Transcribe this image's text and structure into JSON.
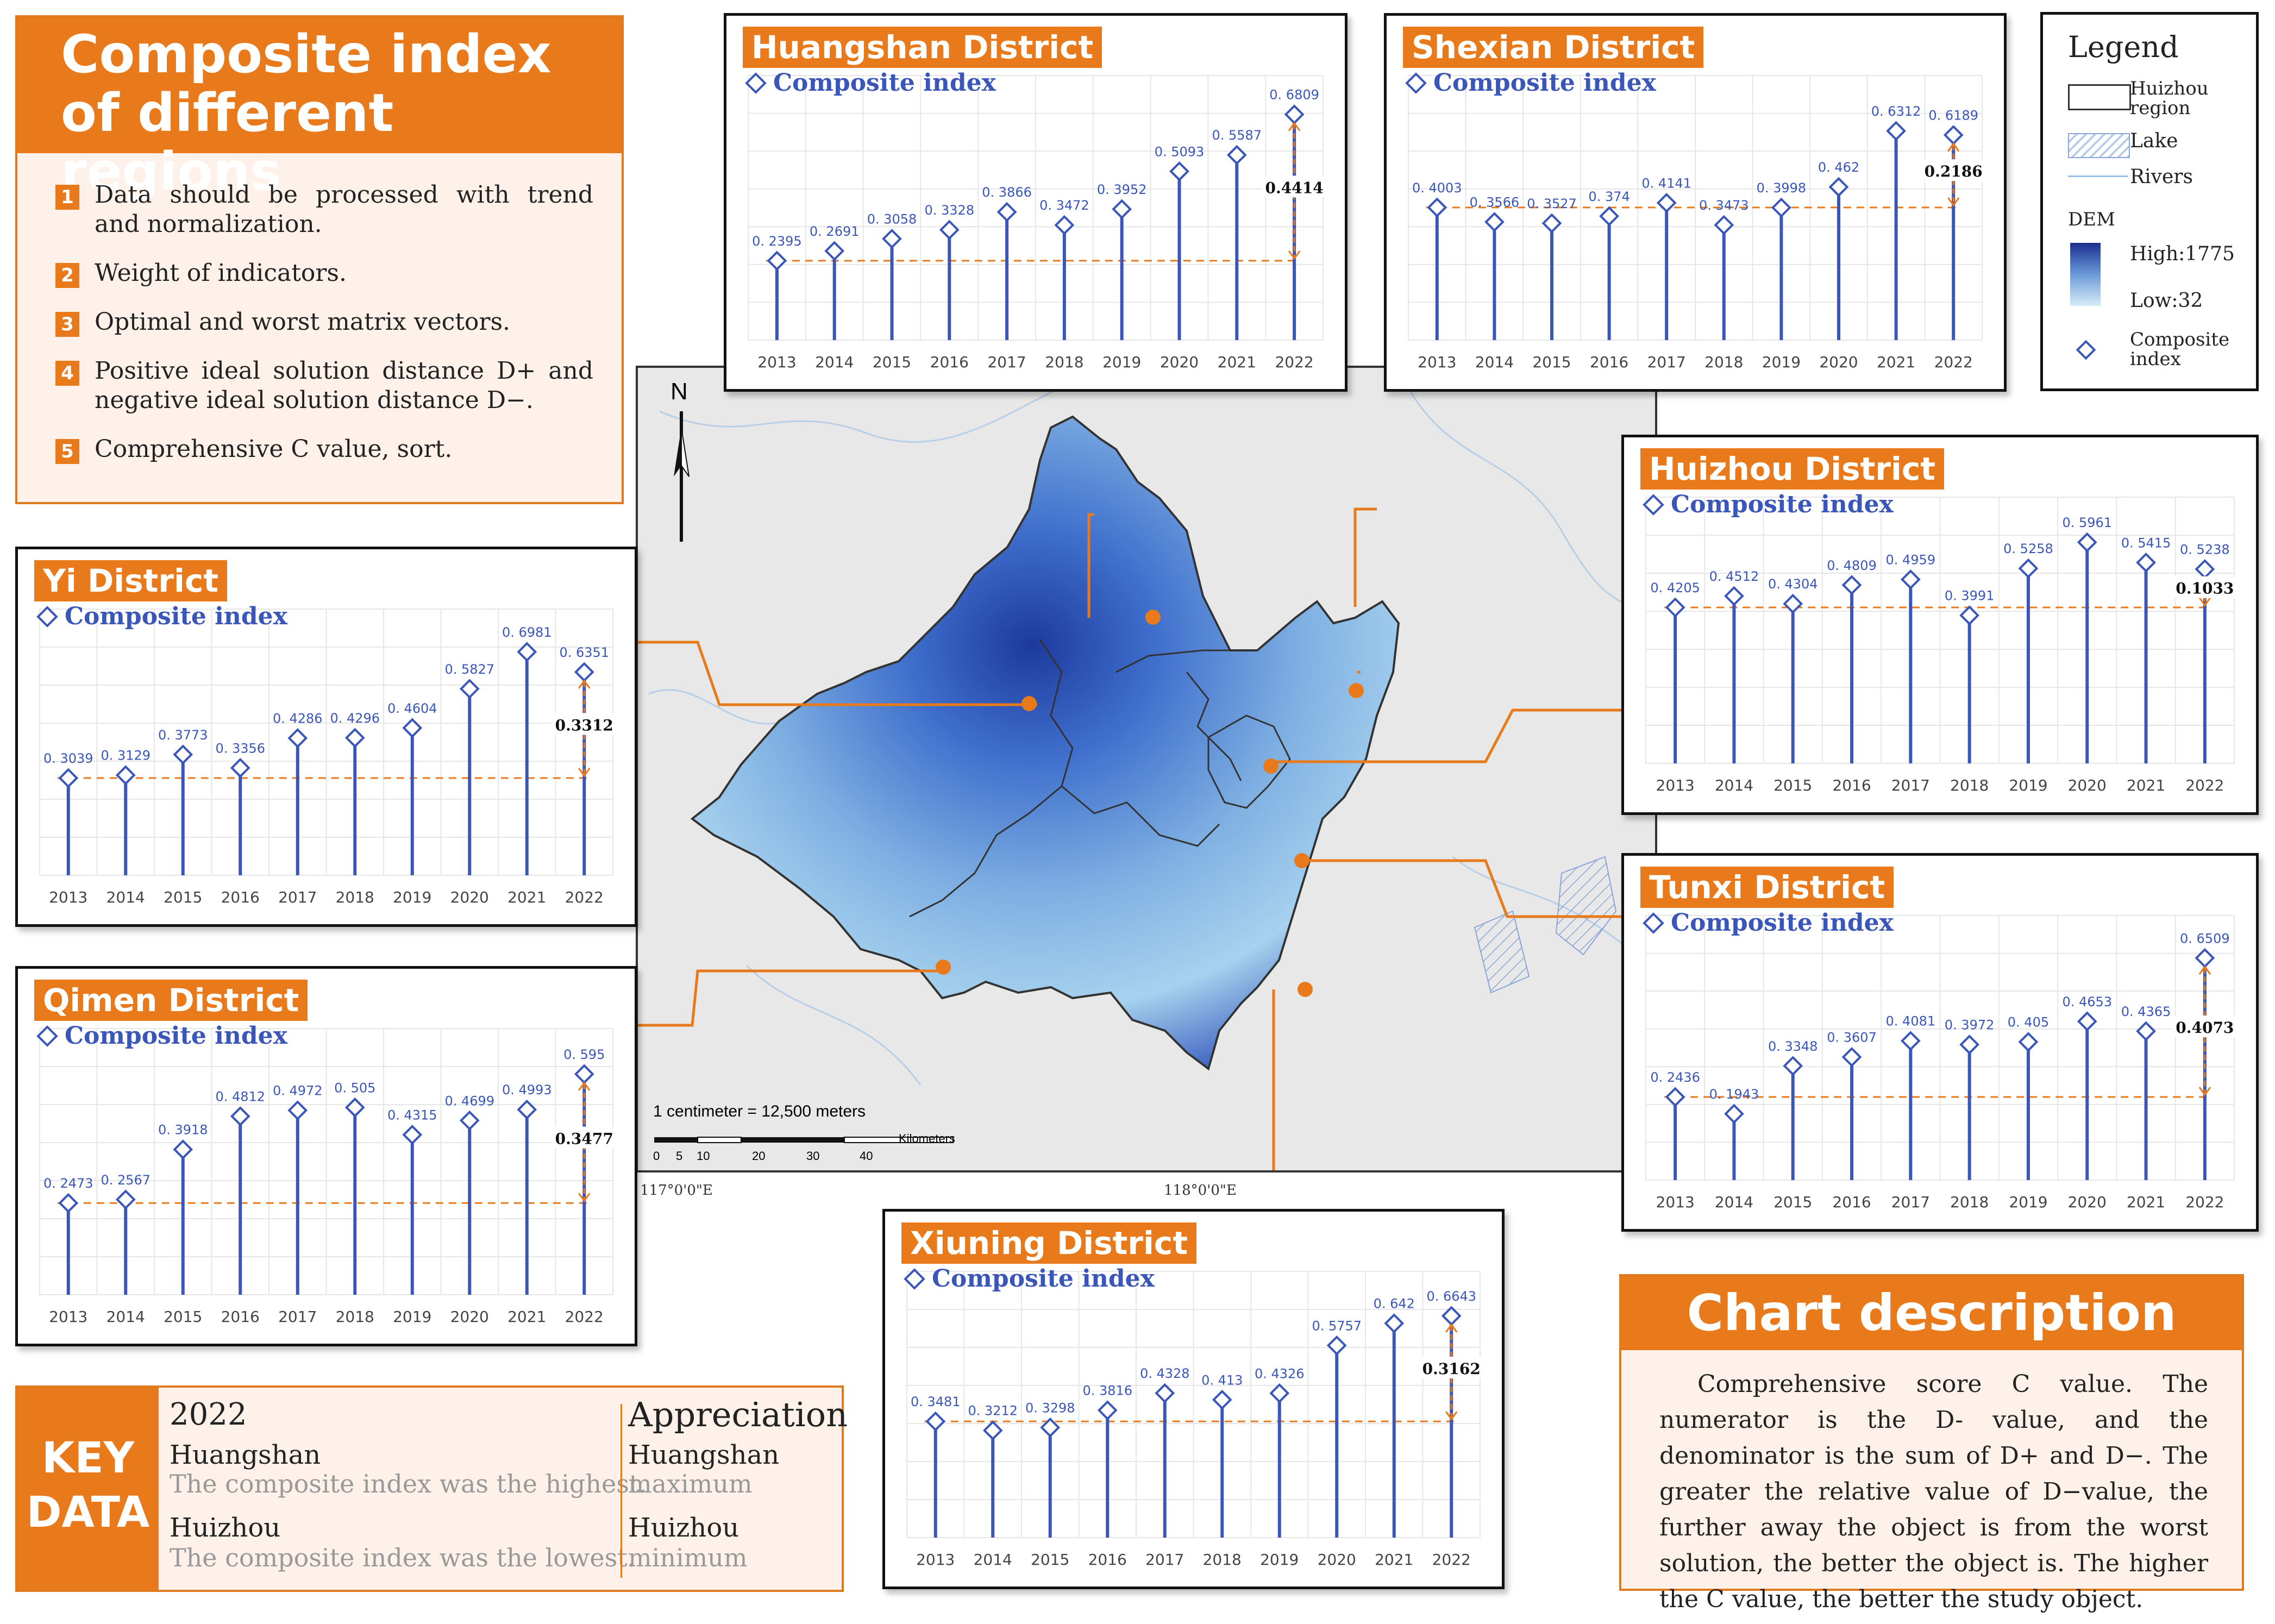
{
  "intro": {
    "title": "Composite index of different regions",
    "steps": [
      {
        "num": "1",
        "text": "Data should be processed with trend and normalization."
      },
      {
        "num": "2",
        "text": "Weight of indicators."
      },
      {
        "num": "3",
        "text": "Optimal and worst matrix vectors."
      },
      {
        "num": "4",
        "text": "Positive ideal solution distance D+ and negative ideal solution distance D−."
      },
      {
        "num": "5",
        "text": "Comprehensive C value, sort."
      }
    ]
  },
  "series_label": "Composite index",
  "chart_data": [
    {
      "id": "huangshan",
      "type": "stem",
      "title": "Huangshan District",
      "series_name": "Composite index",
      "categories": [
        "2013",
        "2014",
        "2015",
        "2016",
        "2017",
        "2018",
        "2019",
        "2020",
        "2021",
        "2022"
      ],
      "values": [
        0.2395,
        0.2691,
        0.3058,
        0.3328,
        0.3866,
        0.3472,
        0.3952,
        0.5093,
        0.5587,
        0.6809
      ],
      "labels": [
        "0. 2395",
        "0. 2691",
        "0. 3058",
        "0. 3328",
        "0. 3866",
        "0. 3472",
        "0. 3952",
        "0. 5093",
        "0. 5587",
        "0. 6809"
      ],
      "difference": "0.4414",
      "ylim": [
        0,
        0.7
      ]
    },
    {
      "id": "shexian",
      "type": "stem",
      "title": "Shexian District",
      "series_name": "Composite index",
      "categories": [
        "2013",
        "2014",
        "2015",
        "2016",
        "2017",
        "2018",
        "2019",
        "2020",
        "2021",
        "2022"
      ],
      "values": [
        0.4003,
        0.3566,
        0.3527,
        0.374,
        0.4141,
        0.3473,
        0.3998,
        0.462,
        0.6312,
        0.6189
      ],
      "labels": [
        "0. 4003",
        "0. 3566",
        "0. 3527",
        "0. 374",
        "0. 4141",
        "0. 3473",
        "0. 3998",
        "0. 462",
        "0. 6312",
        "0. 6189"
      ],
      "difference": "0.2186",
      "ylim": [
        0,
        0.7
      ]
    },
    {
      "id": "huizhou",
      "type": "stem",
      "title": "Huizhou District",
      "series_name": "Composite index",
      "categories": [
        "2013",
        "2014",
        "2015",
        "2016",
        "2017",
        "2018",
        "2019",
        "2020",
        "2021",
        "2022"
      ],
      "values": [
        0.4205,
        0.4512,
        0.4304,
        0.4809,
        0.4959,
        0.3991,
        0.5258,
        0.5961,
        0.5415,
        0.5238
      ],
      "labels": [
        "0. 4205",
        "0. 4512",
        "0. 4304",
        "0. 4809",
        "0. 4959",
        "0. 3991",
        "0. 5258",
        "0. 5961",
        "0. 5415",
        "0. 5238"
      ],
      "difference": "0.1033",
      "ylim": [
        0,
        0.63
      ]
    },
    {
      "id": "yi",
      "type": "stem",
      "title": "Yi District",
      "series_name": "Composite index",
      "categories": [
        "2013",
        "2014",
        "2015",
        "2016",
        "2017",
        "2018",
        "2019",
        "2020",
        "2021",
        "2022"
      ],
      "values": [
        0.3039,
        0.3129,
        0.3773,
        0.3356,
        0.4286,
        0.4296,
        0.4604,
        0.5827,
        0.6981,
        0.6351
      ],
      "labels": [
        "0. 3039",
        "0. 3129",
        "0. 3773",
        "0. 3356",
        "0. 4286",
        "0. 4296",
        "0. 4604",
        "0. 5827",
        "0. 6981",
        "0. 6351"
      ],
      "difference": "0.3312",
      "ylim": [
        0,
        0.73
      ]
    },
    {
      "id": "tunxi",
      "type": "stem",
      "title": "Tunxi District",
      "series_name": "Composite index",
      "categories": [
        "2013",
        "2014",
        "2015",
        "2016",
        "2017",
        "2018",
        "2019",
        "2020",
        "2021",
        "2022"
      ],
      "values": [
        0.2436,
        0.1943,
        0.3348,
        0.3607,
        0.4081,
        0.3972,
        0.405,
        0.4653,
        0.4365,
        0.6509
      ],
      "labels": [
        "0. 2436",
        "0. 1943",
        "0. 3348",
        "0. 3607",
        "0. 4081",
        "0. 3972",
        "0. 405",
        "0. 4653",
        "0. 4365",
        "0. 6509"
      ],
      "difference": "0.4073",
      "ylim": [
        0,
        0.68
      ]
    },
    {
      "id": "qimen",
      "type": "stem",
      "title": "Qimen District",
      "series_name": "Composite index",
      "categories": [
        "2013",
        "2014",
        "2015",
        "2016",
        "2017",
        "2018",
        "2019",
        "2020",
        "2021",
        "2022"
      ],
      "values": [
        0.2473,
        0.2567,
        0.3918,
        0.4812,
        0.4972,
        0.505,
        0.4315,
        0.4699,
        0.4993,
        0.595
      ],
      "labels": [
        "0. 2473",
        "0. 2567",
        "0. 3918",
        "0. 4812",
        "0. 4972",
        "0. 505",
        "0. 4315",
        "0. 4699",
        "0. 4993",
        "0. 595"
      ],
      "difference": "0.3477",
      "ylim": [
        0,
        0.63
      ]
    },
    {
      "id": "xiuning",
      "type": "stem",
      "title": "Xiuning District",
      "series_name": "Composite index",
      "categories": [
        "2013",
        "2014",
        "2015",
        "2016",
        "2017",
        "2018",
        "2019",
        "2020",
        "2021",
        "2022"
      ],
      "values": [
        0.3481,
        0.3212,
        0.3298,
        0.3816,
        0.4328,
        0.413,
        0.4326,
        0.5757,
        0.642,
        0.6643
      ],
      "labels": [
        "0. 3481",
        "0. 3212",
        "0. 3298",
        "0. 3816",
        "0. 4328",
        "0. 413",
        "0. 4326",
        "0. 5757",
        "0. 642",
        "0. 6643"
      ],
      "difference": "0.3162",
      "ylim": [
        0,
        0.7
      ]
    }
  ],
  "map": {
    "north": "N",
    "scale_text": "1 centimeter = 12,500 meters",
    "scale_ticks": [
      "0",
      "5",
      "10",
      "20",
      "30",
      "40"
    ],
    "scale_unit": "Kilometers",
    "lon_left": "117°0'0\"E",
    "lon_right": "118°0'0\"E"
  },
  "legend": {
    "title": "Legend",
    "region": "Huizhou region",
    "lake": "Lake",
    "rivers": "Rivers",
    "dem": "DEM",
    "high": "High:1775",
    "low": "Low:32",
    "composite": "Composite index"
  },
  "key_data": {
    "label": "KEY DATA",
    "year": "2022",
    "highest_region": "Huangshan",
    "highest_text": "The composite index was the highest.",
    "lowest_region": "Huizhou",
    "lowest_text": "The composite index was the lowest.",
    "appreciation": "Appreciation",
    "max_region": "Huangshan",
    "max_text": "maximum",
    "min_region": "Huizhou",
    "min_text": "minimum"
  },
  "description": {
    "title": "Chart description",
    "text": "Comprehensive score C value. The numerator is the D- value, and the denominator is the sum of D+ and D−. The greater the relative value of D−value, the further away the object is from the worst solution, the better the object is. The higher the C value, the better the study object."
  },
  "colors": {
    "accent": "#e87a1c",
    "stem": "#3a56b8",
    "panel_bg": "#fdf1ea"
  }
}
